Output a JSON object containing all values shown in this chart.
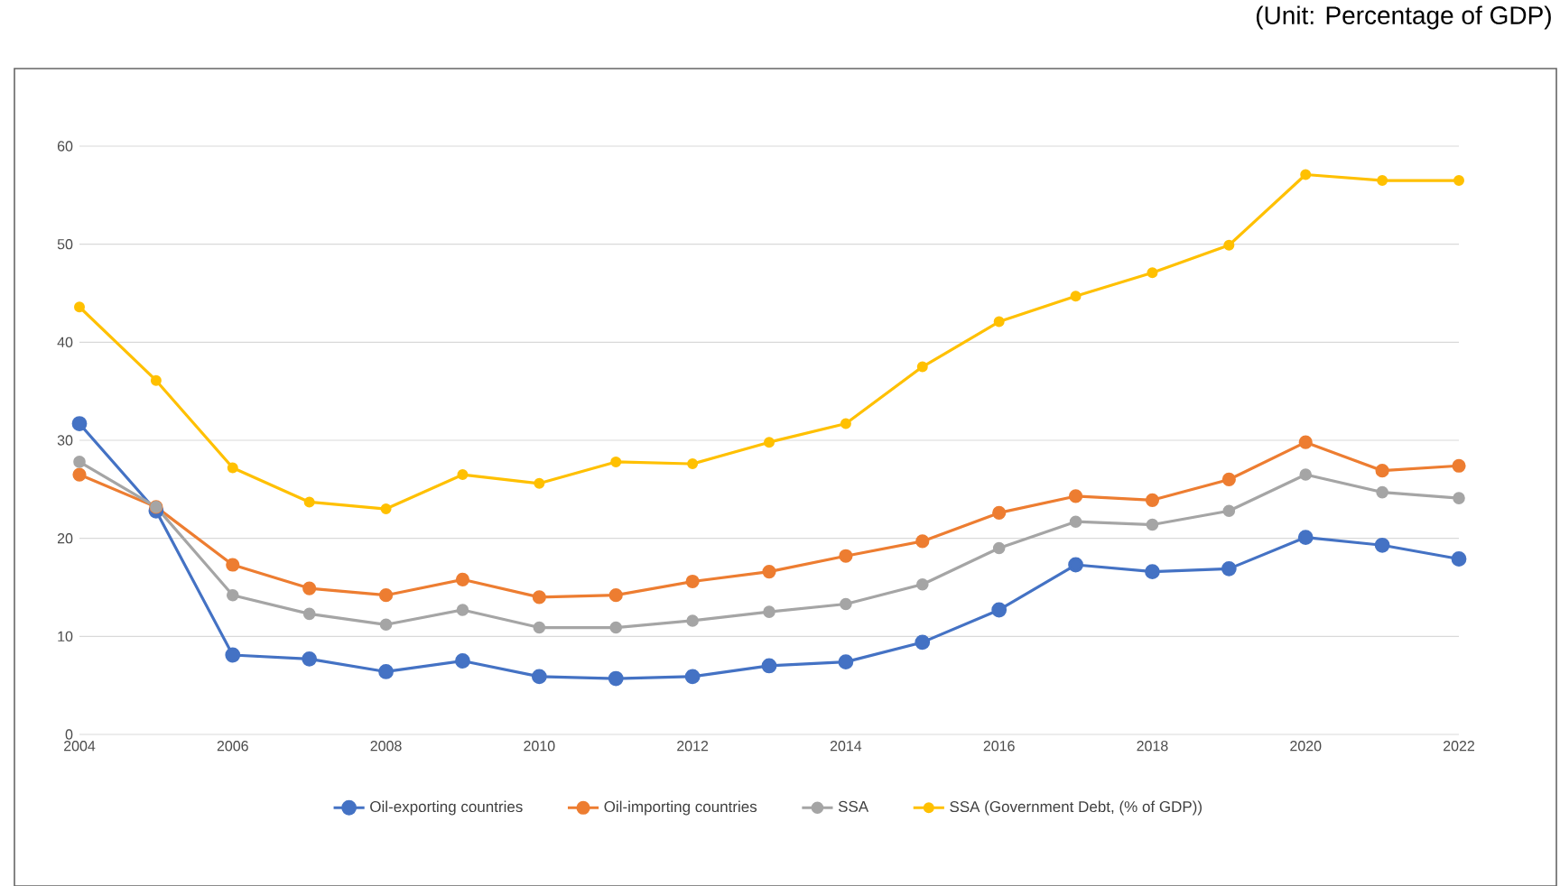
{
  "chart_data": {
    "type": "line",
    "annotations": [
      "(Unit: Percentage of GDP)"
    ],
    "x": [
      2004,
      2005,
      2006,
      2007,
      2008,
      2009,
      2010,
      2011,
      2012,
      2013,
      2014,
      2015,
      2016,
      2017,
      2018,
      2019,
      2020,
      2021,
      2022
    ],
    "xlim": [
      2004,
      2022
    ],
    "xticks": [
      2004,
      2006,
      2008,
      2010,
      2012,
      2014,
      2016,
      2018,
      2020,
      2022
    ],
    "ylim": [
      0,
      60
    ],
    "yticks": [
      0,
      10,
      20,
      30,
      40,
      50,
      60
    ],
    "grid": "y",
    "legend": "bottom",
    "marker": "circle",
    "series": [
      {
        "name": "Oil-exporting countries",
        "color": "#4472c4",
        "values": [
          31.7,
          22.8,
          8.1,
          7.7,
          6.4,
          7.5,
          5.9,
          5.7,
          5.9,
          7.0,
          7.4,
          9.4,
          12.7,
          17.3,
          16.6,
          16.9,
          20.1,
          19.3,
          17.9
        ]
      },
      {
        "name": "Oil-importing countries",
        "color": "#ed7d31",
        "values": [
          26.5,
          23.2,
          17.3,
          14.9,
          14.2,
          15.8,
          14.0,
          14.2,
          15.6,
          16.6,
          18.2,
          19.7,
          22.6,
          24.3,
          23.9,
          26.0,
          29.8,
          26.9,
          27.4
        ]
      },
      {
        "name": "SSA",
        "color": "#a5a5a5",
        "values": [
          27.8,
          23.2,
          14.2,
          12.3,
          11.2,
          12.7,
          10.9,
          10.9,
          11.6,
          12.5,
          13.3,
          15.3,
          19.0,
          21.7,
          21.4,
          22.8,
          26.5,
          24.7,
          24.1
        ]
      },
      {
        "name": "SSA (Government Debt, (% of GDP))",
        "color": "#ffc000",
        "values": [
          43.6,
          36.1,
          27.2,
          23.7,
          23.0,
          26.5,
          25.6,
          27.8,
          27.6,
          29.8,
          31.7,
          37.5,
          42.1,
          44.7,
          47.1,
          49.9,
          57.1,
          56.5,
          56.5
        ]
      }
    ]
  }
}
